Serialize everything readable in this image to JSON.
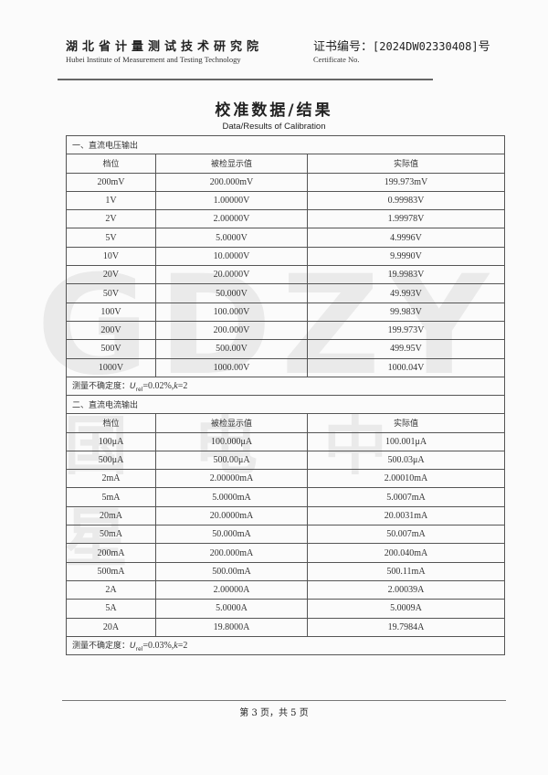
{
  "header": {
    "org_cn": "湖北省计量测试技术研究院",
    "org_en": "Hubei Institute of Measurement and Testing Technology",
    "cert_label": "证书编号：",
    "cert_number": "[2024DW02330408]",
    "cert_suffix": "号",
    "cert_label_en": "Certificate No."
  },
  "title": "校准数据/结果",
  "subtitle": "Data/Results of Calibration",
  "watermark": {
    "logo": "GDZY",
    "cn": "国电中星"
  },
  "sections": [
    {
      "heading": "一、直流电压输出",
      "columns": [
        "档位",
        "被检显示值",
        "实际值"
      ],
      "rows": [
        [
          "200mV",
          "200.000mV",
          "199.973mV"
        ],
        [
          "1V",
          "1.00000V",
          "0.99983V"
        ],
        [
          "2V",
          "2.00000V",
          "1.99978V"
        ],
        [
          "5V",
          "5.0000V",
          "4.9996V"
        ],
        [
          "10V",
          "10.0000V",
          "9.9990V"
        ],
        [
          "20V",
          "20.0000V",
          "19.9983V"
        ],
        [
          "50V",
          "50.000V",
          "49.993V"
        ],
        [
          "100V",
          "100.000V",
          "99.983V"
        ],
        [
          "200V",
          "200.000V",
          "199.973V"
        ],
        [
          "500V",
          "500.00V",
          "499.95V"
        ],
        [
          "1000V",
          "1000.00V",
          "1000.04V"
        ]
      ],
      "uncertainty": {
        "label": "测量不确定度：",
        "value": "=0.02%,",
        "k": "k",
        "k_value": "=2"
      }
    },
    {
      "heading": "二、直流电流输出",
      "columns": [
        "档位",
        "被检显示值",
        "实际值"
      ],
      "rows": [
        [
          "100μA",
          "100.000μA",
          "100.001μA"
        ],
        [
          "500μA",
          "500.00μA",
          "500.03μA"
        ],
        [
          "2mA",
          "2.00000mA",
          "2.00010mA"
        ],
        [
          "5mA",
          "5.0000mA",
          "5.0007mA"
        ],
        [
          "20mA",
          "20.0000mA",
          "20.0031mA"
        ],
        [
          "50mA",
          "50.000mA",
          "50.007mA"
        ],
        [
          "200mA",
          "200.000mA",
          "200.040mA"
        ],
        [
          "500mA",
          "500.00mA",
          "500.11mA"
        ],
        [
          "2A",
          "2.00000A",
          "2.00039A"
        ],
        [
          "5A",
          "5.0000A",
          "5.0009A"
        ],
        [
          "20A",
          "19.8000A",
          "19.7984A"
        ]
      ],
      "uncertainty": {
        "label": "测量不确定度：",
        "value": "=0.03%,",
        "k": "k",
        "k_value": "=2"
      }
    }
  ],
  "footer": {
    "page": "第 3 页，共 5 页"
  }
}
